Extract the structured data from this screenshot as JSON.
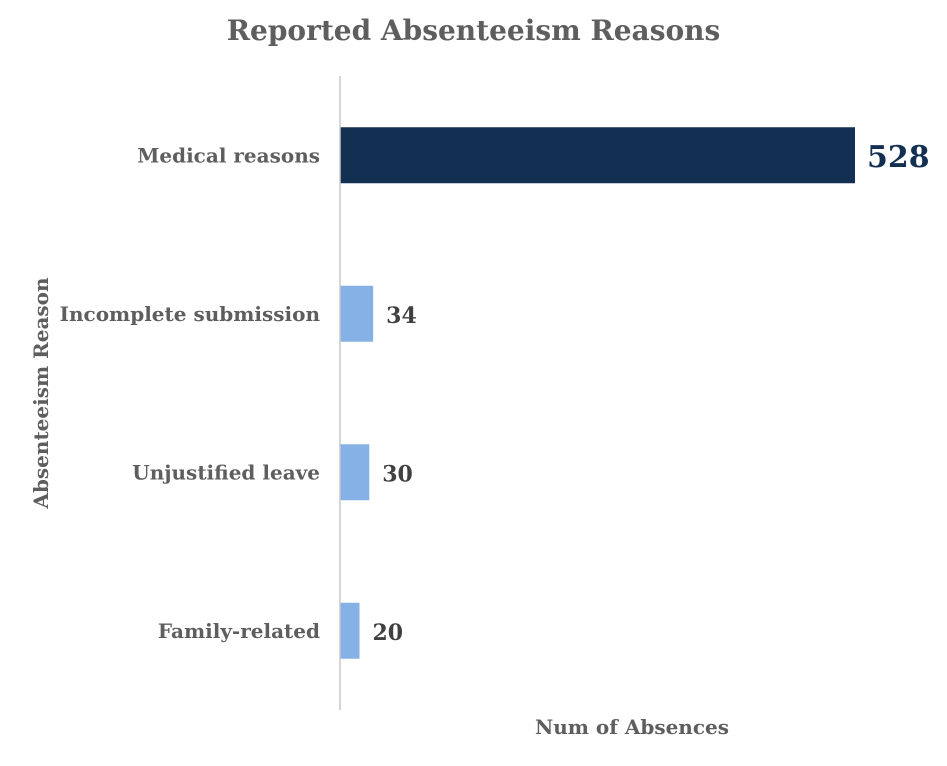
{
  "chart_data": {
    "type": "bar",
    "orientation": "horizontal",
    "title": "Reported Absenteeism Reasons",
    "xlabel": "Num of Absences",
    "ylabel": "Absenteeism Reason",
    "categories": [
      "Medical reasons",
      "Incomplete submission",
      "Unjustified leave",
      "Family-related"
    ],
    "values": [
      528,
      34,
      30,
      20
    ],
    "xlim": [
      0,
      528
    ],
    "grid": false,
    "legend": "none",
    "highlight_index": 0,
    "colors": {
      "highlight": "#132f52",
      "default": "#85b1e6",
      "label_highlight": "#132f52",
      "label_default": "#404040",
      "category_text": "#5e5e5e",
      "axis_line": "#c8c8c8"
    }
  }
}
